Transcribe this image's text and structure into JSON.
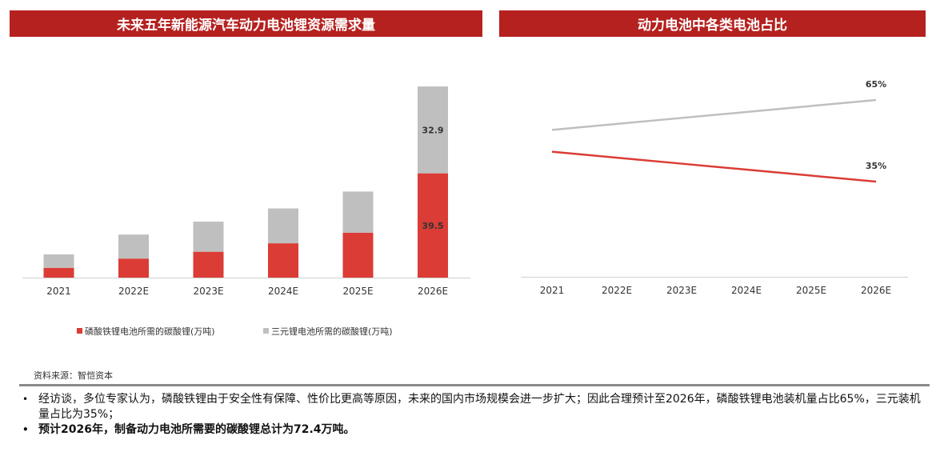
{
  "titles": {
    "left": "未来五年新能源汽车动力电池锂资源需求量",
    "right": "动力电池中各类电池占比"
  },
  "colors": {
    "red": "#db3c35",
    "gray": "#bfbfbf",
    "banner": "#b5211f"
  },
  "chart_data": [
    {
      "type": "bar",
      "stacked": true,
      "categories": [
        "2021",
        "2022E",
        "2023E",
        "2024E",
        "2025E",
        "2026E"
      ],
      "series": [
        {
          "name": "磷酸铁锂电池所需的碳酸锂(万吨)",
          "values": [
            3.7,
            7.2,
            9.8,
            13.0,
            17.0,
            39.5
          ],
          "color": "#db3c35"
        },
        {
          "name": "三元锂电池所需的碳酸锂(万吨)",
          "values": [
            5.1,
            9.1,
            11.4,
            13.2,
            15.6,
            32.9
          ],
          "color": "#bfbfbf"
        }
      ],
      "data_labels": [
        "39.5",
        "32.9"
      ],
      "legend_position": "bottom"
    },
    {
      "type": "line",
      "categories": [
        "2021",
        "2022E",
        "2023E",
        "2024E",
        "2025E",
        "2026E"
      ],
      "series": [
        {
          "values": [
            54,
            56.2,
            58.4,
            60.6,
            62.8,
            65
          ],
          "color": "#bfbfbf",
          "end_label": "65%"
        },
        {
          "values": [
            46,
            43.8,
            41.6,
            39.4,
            37.2,
            35
          ],
          "color": "#db3c35",
          "end_label": "35%"
        }
      ],
      "ylim": [
        0,
        70
      ]
    }
  ],
  "source": "资料来源：智恺资本",
  "bullets": [
    "经访谈，多位专家认为，磷酸铁锂由于安全性有保障、性价比更高等原因，未来的国内市场规模会进一步扩大；因此合理预计至2026年，磷酸铁锂电池装机量占比65%，三元装机量占比为35%；",
    "预计2026年，制备动力电池所需要的碳酸锂总计为72.4万吨。"
  ]
}
